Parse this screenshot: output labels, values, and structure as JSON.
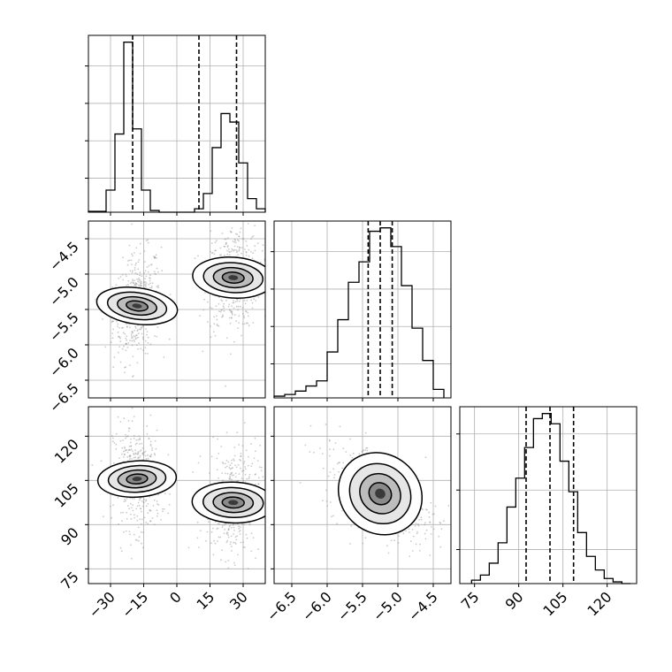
{
  "chart_data": {
    "type": "corner",
    "description_parameters": 3,
    "grid": true,
    "colors": {
      "line": "#000000",
      "grid": "#b0b0b0",
      "scatter": "#8c8c8c"
    },
    "panels": [
      {
        "id": "hist-p1",
        "type": "histogram",
        "xlim": [
          -40,
          40
        ],
        "quantile_lines": [
          -20,
          10,
          27
        ],
        "bins_x": [
          -40,
          -36,
          -32,
          -28,
          -24,
          -20,
          -16,
          -12,
          -8,
          -4,
          0,
          4,
          8,
          12,
          16,
          20,
          24,
          28,
          32,
          36,
          40
        ],
        "counts": [
          0.005,
          0.005,
          0.13,
          0.46,
          1.0,
          0.49,
          0.13,
          0.01,
          0.0,
          0.0,
          0.0,
          0.0,
          0.02,
          0.11,
          0.38,
          0.58,
          0.53,
          0.29,
          0.08,
          0.02
        ]
      },
      {
        "id": "hist-p2",
        "type": "histogram",
        "xlim": [
          -6.75,
          -4.25
        ],
        "quantile_lines": [
          -5.42,
          -5.25,
          -5.08
        ],
        "bins_x": [
          -6.75,
          -6.6,
          -6.45,
          -6.3,
          -6.15,
          -6.0,
          -5.85,
          -5.7,
          -5.55,
          -5.4,
          -5.25,
          -5.1,
          -4.95,
          -4.8,
          -4.65,
          -4.5,
          -4.35
        ],
        "counts": [
          0.01,
          0.02,
          0.04,
          0.07,
          0.1,
          0.27,
          0.46,
          0.68,
          0.8,
          0.98,
          1.0,
          0.89,
          0.66,
          0.41,
          0.22,
          0.05
        ]
      },
      {
        "id": "hist-p3",
        "type": "histogram",
        "xlim": [
          70,
          130
        ],
        "quantile_lines": [
          92.5,
          100.6,
          108.6
        ],
        "bins_x": [
          74,
          77,
          80,
          83,
          86,
          89,
          92,
          95,
          98,
          101,
          104,
          107,
          110,
          113,
          116,
          119,
          122,
          125,
          128
        ],
        "counts": [
          0.02,
          0.05,
          0.12,
          0.24,
          0.45,
          0.62,
          0.8,
          0.97,
          1.0,
          0.94,
          0.72,
          0.54,
          0.3,
          0.16,
          0.08,
          0.03,
          0.01,
          0.0
        ]
      },
      {
        "id": "scatter-p1-p2",
        "type": "density",
        "x": "p1",
        "y": "p2",
        "xlim": [
          -40,
          40
        ],
        "ylim": [
          -6.75,
          -4.25
        ],
        "modes": [
          {
            "cx": -18,
            "cy": -5.45,
            "sx": 4.0,
            "sy": 0.28,
            "rho": 0.25
          },
          {
            "cx": 25.5,
            "cy": -5.05,
            "sx": 4.5,
            "sy": 0.28,
            "rho": 0.1
          }
        ]
      },
      {
        "id": "scatter-p1-p3",
        "type": "density",
        "x": "p1",
        "y": "p3",
        "xlim": [
          -40,
          40
        ],
        "ylim": [
          70,
          130
        ],
        "modes": [
          {
            "cx": -18,
            "cy": 105.5,
            "sx": 4.0,
            "sy": 6.5,
            "rho": -0.1
          },
          {
            "cx": 25.5,
            "cy": 97.5,
            "sx": 4.5,
            "sy": 6.8,
            "rho": 0.05
          }
        ]
      },
      {
        "id": "scatter-p2-p3",
        "type": "density",
        "x": "p2",
        "y": "p3",
        "xlim": [
          -6.75,
          -4.25
        ],
        "ylim": [
          70,
          130
        ],
        "modes": [
          {
            "cx": -5.25,
            "cy": 100.5,
            "sx": 0.3,
            "sy": 6.5,
            "rho": -0.55
          }
        ]
      }
    ],
    "axes": {
      "p1": {
        "ticks": [
          -30,
          -15,
          0,
          15,
          30
        ],
        "tick_labels": [
          "−30",
          "−15",
          "0",
          "15",
          "30"
        ]
      },
      "p2": {
        "ticks": [
          -6.5,
          -6.0,
          -5.5,
          -5.0,
          -4.5
        ],
        "tick_labels": [
          "−6.5",
          "−6.0",
          "−5.5",
          "−5.0",
          "−4.5"
        ]
      },
      "p3": {
        "ticks": [
          75,
          90,
          105,
          120
        ],
        "tick_labels": [
          "75",
          "90",
          "105",
          "120"
        ]
      }
    }
  }
}
